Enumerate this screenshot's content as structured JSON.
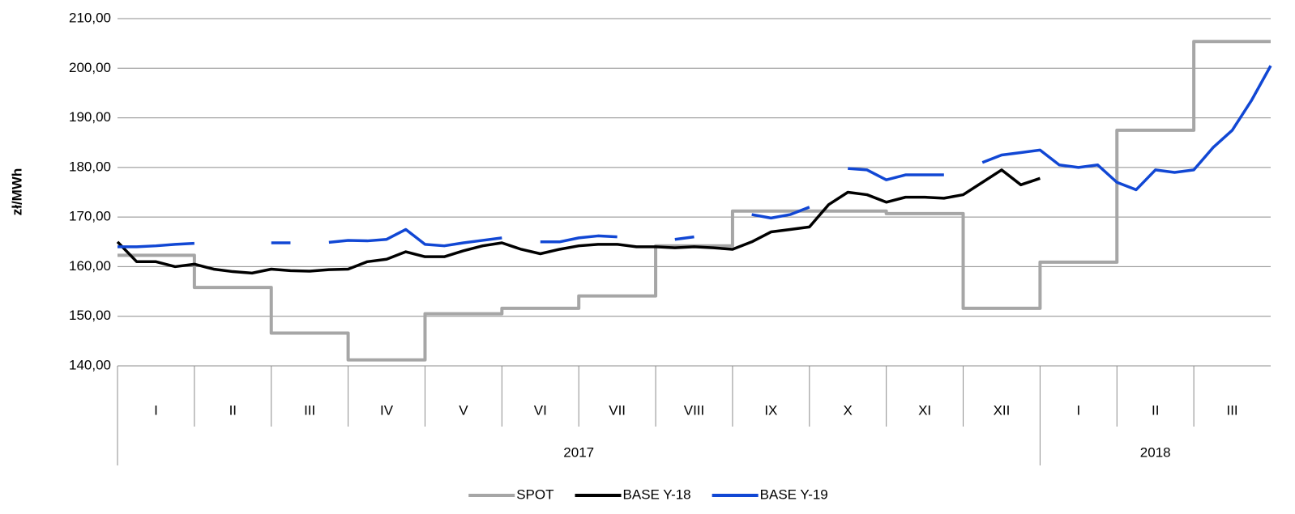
{
  "chart_data": {
    "type": "line",
    "ylabel": "zł/MWh",
    "categories": [
      "I",
      "II",
      "III",
      "IV",
      "V",
      "VI",
      "VII",
      "VIII",
      "IX",
      "X",
      "XI",
      "XII",
      "I",
      "II",
      "III"
    ],
    "category_years": [
      "2017",
      "2017",
      "2017",
      "2017",
      "2017",
      "2017",
      "2017",
      "2017",
      "2017",
      "2017",
      "2017",
      "2017",
      "2018",
      "2018",
      "2018"
    ],
    "x": [
      0,
      0.25,
      0.5,
      0.75,
      1,
      1.25,
      1.5,
      1.75,
      2,
      2.25,
      2.5,
      2.75,
      3,
      3.25,
      3.5,
      3.75,
      4,
      4.25,
      4.5,
      4.75,
      5,
      5.25,
      5.5,
      5.75,
      6,
      6.25,
      6.5,
      6.75,
      7,
      7.25,
      7.5,
      7.75,
      8,
      8.25,
      8.5,
      8.75,
      9,
      9.25,
      9.5,
      9.75,
      10,
      10.25,
      10.5,
      10.75,
      11,
      11.25,
      11.5,
      11.75,
      12,
      12.25,
      12.5,
      12.75,
      13,
      13.25,
      13.5,
      13.75,
      14,
      14.25,
      14.5,
      14.75,
      15
    ],
    "xlim": [
      0,
      15
    ],
    "ylim": [
      140,
      210
    ],
    "yticks": [
      {
        "value": 140,
        "label": "140,00"
      },
      {
        "value": 150,
        "label": "150,00"
      },
      {
        "value": 160,
        "label": "160,00"
      },
      {
        "value": 170,
        "label": "170,00"
      },
      {
        "value": 180,
        "label": "180,00"
      },
      {
        "value": 190,
        "label": "190,00"
      },
      {
        "value": 200,
        "label": "200,00"
      },
      {
        "value": 210,
        "label": "210,00"
      }
    ],
    "grid": true,
    "legend": "bottom",
    "series": [
      {
        "name": "SPOT",
        "color": "#a6a6a6",
        "step": true,
        "values": [
          162.3,
          162.3,
          162.3,
          162.3,
          155.8,
          155.8,
          155.8,
          155.8,
          146.6,
          146.6,
          146.6,
          146.6,
          141.2,
          141.2,
          141.2,
          141.2,
          150.5,
          150.5,
          150.5,
          150.5,
          151.6,
          151.6,
          151.6,
          151.6,
          154.1,
          154.1,
          154.1,
          154.1,
          164.2,
          164.2,
          164.2,
          164.2,
          171.2,
          171.2,
          171.2,
          171.2,
          171.2,
          171.2,
          171.2,
          171.2,
          170.7,
          170.7,
          170.7,
          170.7,
          151.6,
          151.6,
          151.6,
          151.6,
          160.9,
          160.9,
          160.9,
          160.9,
          187.5,
          187.5,
          187.5,
          187.5,
          205.4,
          205.4,
          205.4,
          205.4,
          205.4
        ]
      },
      {
        "name": "BASE Y-18",
        "color": "#000000",
        "values": [
          165,
          161,
          161,
          160,
          160.5,
          159.5,
          159,
          158.7,
          159.5,
          159.2,
          159.1,
          159.4,
          159.5,
          161,
          161.5,
          163,
          162,
          162,
          163.2,
          164.2,
          164.8,
          163.5,
          162.6,
          163.5,
          164.2,
          164.5,
          164.5,
          164,
          164,
          163.8,
          164,
          163.8,
          163.5,
          165,
          167,
          167.5,
          168,
          172.5,
          175,
          174.5,
          173,
          174,
          174,
          173.8,
          174.5,
          177,
          179.5,
          176.5,
          177.8,
          null,
          null,
          null,
          null,
          null,
          null,
          null,
          null,
          null,
          null,
          null,
          null
        ]
      },
      {
        "name": "BASE Y-19",
        "color": "#1147d4",
        "values": [
          164,
          164,
          164.2,
          164.5,
          164.7,
          null,
          null,
          null,
          164.8,
          164.8,
          null,
          164.9,
          165.3,
          165.2,
          165.5,
          167.5,
          164.5,
          164.2,
          164.8,
          165.3,
          165.8,
          null,
          165,
          165,
          165.8,
          166.2,
          166,
          null,
          null,
          165.5,
          166,
          null,
          null,
          170.5,
          169.8,
          170.5,
          172,
          null,
          179.8,
          179.5,
          177.5,
          178.5,
          178.5,
          178.5,
          null,
          181,
          182.5,
          183,
          183.5,
          180.5,
          180,
          180.5,
          177,
          175.5,
          179.5,
          179,
          179.5,
          184,
          187.5,
          193.5,
          200.5
        ]
      }
    ]
  }
}
